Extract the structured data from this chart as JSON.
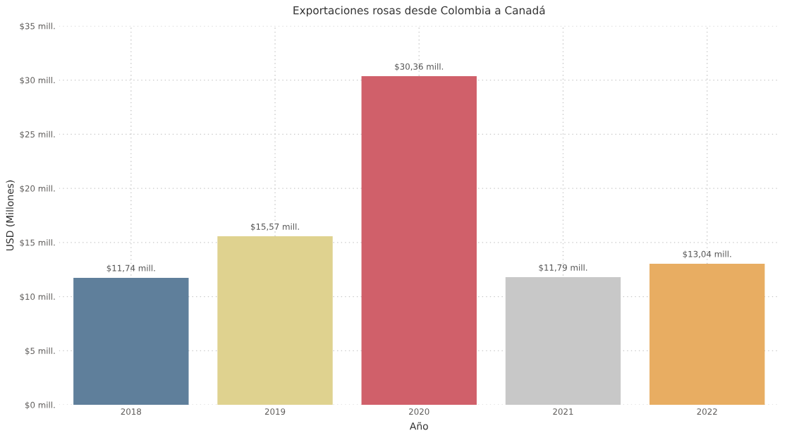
{
  "chart_data": {
    "type": "bar",
    "title": "Exportaciones rosas desde Colombia a Canadá",
    "xlabel": "Año",
    "ylabel": "USD (Millones)",
    "categories": [
      "2018",
      "2019",
      "2020",
      "2021",
      "2022"
    ],
    "values": [
      11.74,
      15.57,
      30.36,
      11.79,
      13.04
    ],
    "colors": [
      "#5f7f9b",
      "#dfd28f",
      "#d0606a",
      "#c8c8c8",
      "#e8ad62"
    ],
    "value_labels": [
      "$11,74 mill.",
      "$15,57 mill.",
      "$30,36 mill.",
      "$11,79 mill.",
      "$13,04 mill."
    ],
    "ylim": [
      0,
      35
    ],
    "yticks": [
      {
        "value": 0,
        "label": "$0 mill."
      },
      {
        "value": 5,
        "label": "$5 mill."
      },
      {
        "value": 10,
        "label": "$10 mill."
      },
      {
        "value": 15,
        "label": "$15 mill."
      },
      {
        "value": 20,
        "label": "$20 mill."
      },
      {
        "value": 25,
        "label": "$25 mill."
      },
      {
        "value": 30,
        "label": "$30 mill."
      },
      {
        "value": 35,
        "label": "$35 mill."
      }
    ],
    "grid": true,
    "legend": false
  }
}
